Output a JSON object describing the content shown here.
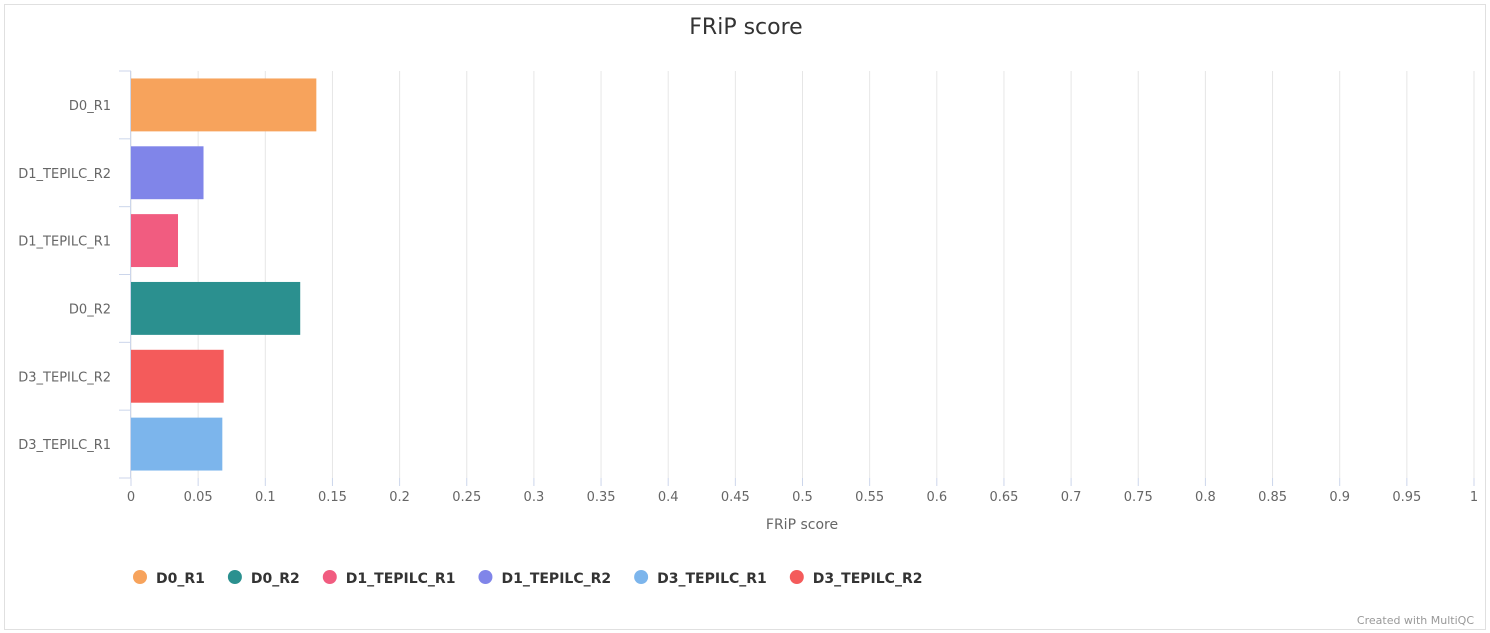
{
  "chart_data": {
    "type": "bar",
    "orientation": "horizontal",
    "title": "FRiP score",
    "xlabel": "FRiP score",
    "xlim": [
      0,
      1
    ],
    "xticks": [
      "0",
      "0.05",
      "0.1",
      "0.15",
      "0.2",
      "0.25",
      "0.3",
      "0.35",
      "0.4",
      "0.45",
      "0.5",
      "0.55",
      "0.6",
      "0.65",
      "0.7",
      "0.75",
      "0.8",
      "0.85",
      "0.9",
      "0.95",
      "1"
    ],
    "grid": true,
    "legend_position": "bottom-left",
    "categories": [
      "D0_R1",
      "D1_TEPILC_R2",
      "D1_TEPILC_R1",
      "D0_R2",
      "D3_TEPILC_R2",
      "D3_TEPILC_R1"
    ],
    "values": [
      0.138,
      0.054,
      0.035,
      0.126,
      0.069,
      0.068
    ],
    "colors": [
      "#f7a35c",
      "#8085e9",
      "#f15c80",
      "#2b908f",
      "#f45b5b",
      "#7cb5ec"
    ],
    "legend": [
      {
        "name": "D0_R1",
        "color": "#f7a35c"
      },
      {
        "name": "D0_R2",
        "color": "#2b908f"
      },
      {
        "name": "D1_TEPILC_R1",
        "color": "#f15c80"
      },
      {
        "name": "D1_TEPILC_R2",
        "color": "#8085e9"
      },
      {
        "name": "D3_TEPILC_R1",
        "color": "#7cb5ec"
      },
      {
        "name": "D3_TEPILC_R2",
        "color": "#f45b5b"
      }
    ]
  },
  "credit": "Created with MultiQC"
}
